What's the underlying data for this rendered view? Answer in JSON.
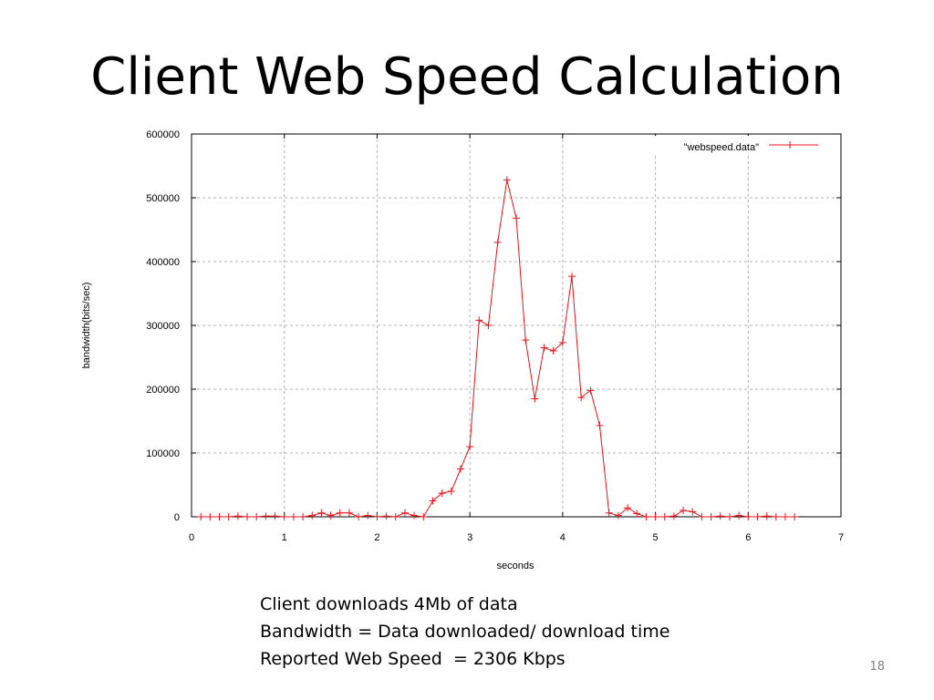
{
  "slide": {
    "title": "Client Web Speed Calculation",
    "notes": [
      "Client downloads 4Mb of data",
      "Bandwidth = Data downloaded/ download time",
      "Reported Web Speed  = 2306 Kbps"
    ],
    "page_number": "18"
  },
  "chart_data": {
    "type": "line",
    "title": "",
    "xlabel": "seconds",
    "ylabel": "bandwidth(bits/sec)",
    "xlim": [
      0,
      7
    ],
    "ylim": [
      0,
      600000
    ],
    "x_ticks": [
      0,
      1,
      2,
      3,
      4,
      5,
      6,
      7
    ],
    "y_ticks": [
      0,
      100000,
      200000,
      300000,
      400000,
      500000,
      600000
    ],
    "grid": true,
    "legend_position": "top-right",
    "series_color": "#e8141b",
    "series": [
      {
        "name": "\"webspeed.data\"",
        "x": [
          0.1,
          0.2,
          0.3,
          0.4,
          0.5,
          0.6,
          0.7,
          0.8,
          0.9,
          1.0,
          1.1,
          1.2,
          1.3,
          1.4,
          1.5,
          1.6,
          1.7,
          1.8,
          1.9,
          2.0,
          2.1,
          2.2,
          2.3,
          2.4,
          2.5,
          2.6,
          2.7,
          2.8,
          2.9,
          3.0,
          3.1,
          3.2,
          3.3,
          3.4,
          3.5,
          3.6,
          3.7,
          3.8,
          3.9,
          4.0,
          4.1,
          4.2,
          4.3,
          4.4,
          4.5,
          4.6,
          4.7,
          4.8,
          4.9,
          5.0,
          5.1,
          5.2,
          5.3,
          5.4,
          5.5,
          5.6,
          5.7,
          5.8,
          5.9,
          6.0,
          6.1,
          6.2,
          6.3,
          6.4,
          6.5
        ],
        "y": [
          0,
          0,
          0,
          0,
          1000,
          0,
          0,
          1000,
          1000,
          0,
          0,
          0,
          2000,
          6000,
          2000,
          6000,
          6000,
          0,
          2000,
          0,
          1000,
          0,
          6000,
          2000,
          0,
          25000,
          37000,
          40000,
          75000,
          110000,
          308000,
          300000,
          430000,
          528000,
          468000,
          277000,
          185000,
          265000,
          260000,
          273000,
          377000,
          187000,
          198000,
          143000,
          6000,
          2000,
          14000,
          5000,
          0,
          0,
          0,
          1000,
          10000,
          8000,
          0,
          0,
          1000,
          0,
          2000,
          0,
          0,
          1000,
          0,
          0,
          0
        ]
      }
    ]
  }
}
